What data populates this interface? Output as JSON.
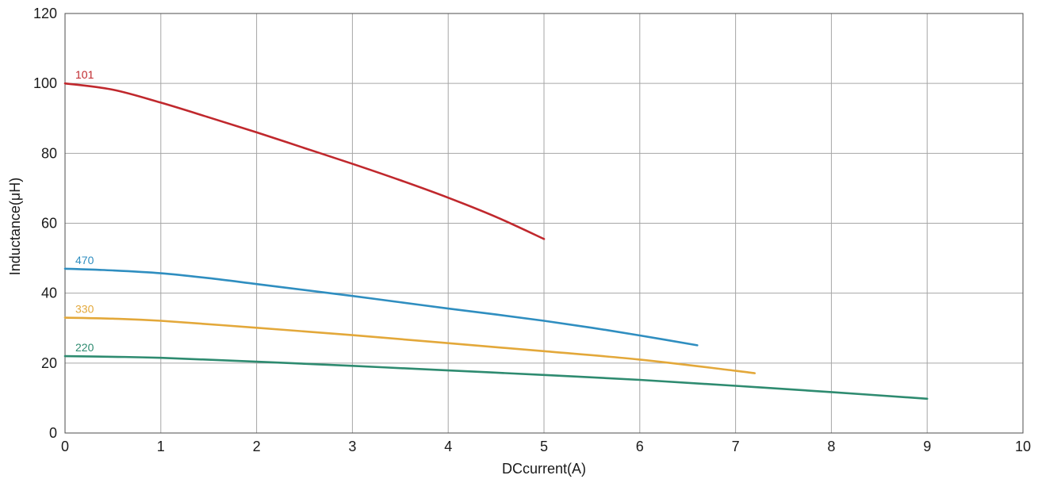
{
  "chart_data": {
    "type": "line",
    "title": "",
    "xlabel": "DCcurrent(A)",
    "ylabel": "Inductance(μH)",
    "xlim": [
      0,
      10
    ],
    "ylim": [
      0,
      120
    ],
    "x_ticks": [
      0,
      1,
      2,
      3,
      4,
      5,
      6,
      7,
      8,
      9,
      10
    ],
    "y_ticks": [
      0,
      20,
      40,
      60,
      80,
      100,
      120
    ],
    "grid": true,
    "legend": "none",
    "series": [
      {
        "name": "101",
        "color": "#c0282d",
        "x": [
          0,
          0.5,
          1,
          1.5,
          2,
          2.5,
          3,
          3.5,
          4,
          4.5,
          5
        ],
        "y": [
          100,
          98.2,
          94.5,
          90.3,
          86,
          81.5,
          77,
          72.3,
          67.3,
          61.8,
          55.5
        ]
      },
      {
        "name": "470",
        "color": "#2f8ec0",
        "x": [
          0,
          0.5,
          1,
          1.5,
          2,
          2.5,
          3,
          3.5,
          4,
          4.5,
          5,
          5.5,
          6,
          6.6
        ],
        "y": [
          47,
          46.5,
          45.7,
          44.3,
          42.6,
          40.9,
          39.2,
          37.4,
          35.6,
          33.9,
          32.1,
          30.1,
          27.9,
          25.1
        ]
      },
      {
        "name": "330",
        "color": "#e3a83a",
        "x": [
          0,
          0.5,
          1,
          2,
          3,
          4,
          5,
          6,
          7,
          7.2
        ],
        "y": [
          33,
          32.7,
          32.1,
          30.1,
          28,
          25.7,
          23.4,
          21,
          17.8,
          17.1
        ]
      },
      {
        "name": "220",
        "color": "#2e8b70",
        "x": [
          0,
          0.5,
          1,
          2,
          3,
          4,
          5,
          6,
          7,
          8,
          9
        ],
        "y": [
          22,
          21.8,
          21.5,
          20.4,
          19.2,
          17.9,
          16.6,
          15.2,
          13.5,
          11.7,
          9.8
        ]
      }
    ]
  }
}
